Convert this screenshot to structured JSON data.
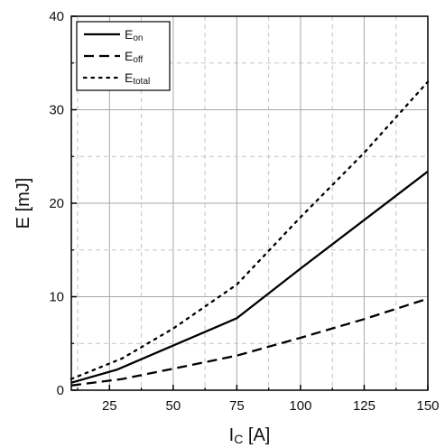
{
  "chart_data": {
    "type": "line",
    "xlabel": {
      "main": "I",
      "sub": "C",
      "unit": " [A]"
    },
    "ylabel": "E [mJ]",
    "xlim": [
      10,
      150
    ],
    "ylim": [
      0,
      40
    ],
    "x_ticks": [
      25,
      50,
      75,
      100,
      125,
      150
    ],
    "x_tick_labels": [
      "25",
      "50",
      "75",
      "100",
      "125",
      "150"
    ],
    "y_ticks": [
      0,
      10,
      20,
      30,
      40
    ],
    "y_tick_labels": [
      "0",
      "10",
      "20",
      "30",
      "40"
    ],
    "grid": true,
    "legend_placement": "top-left",
    "series": [
      {
        "name": "E",
        "sub": "on",
        "dash": "solid",
        "color": "#000000",
        "x": [
          10,
          28,
          75,
          100,
          150
        ],
        "y": [
          0.8,
          2.2,
          7.7,
          13.0,
          23.4
        ]
      },
      {
        "name": "E",
        "sub": "off",
        "dash": "dashed",
        "color": "#000000",
        "x": [
          10,
          30,
          50,
          75,
          100,
          125,
          150
        ],
        "y": [
          0.5,
          1.2,
          2.3,
          3.7,
          5.6,
          7.6,
          9.8
        ]
      },
      {
        "name": "E",
        "sub": "total",
        "dash": "dotted",
        "color": "#000000",
        "x": [
          10,
          30,
          50,
          75,
          100,
          125,
          150
        ],
        "y": [
          1.2,
          3.4,
          6.6,
          11.3,
          18.5,
          25.4,
          33.0
        ]
      }
    ]
  }
}
